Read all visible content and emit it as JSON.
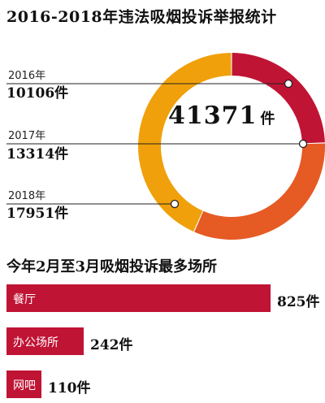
{
  "colors": {
    "y2016": "#c01435",
    "y2017": "#e65a24",
    "y2018": "#f0a00a",
    "bar": "#c01435"
  },
  "chart_data": [
    {
      "type": "pie",
      "title": "2016-2018年违法吸烟投诉举报统计",
      "total_label": "41371",
      "total_unit": "件",
      "slices": [
        {
          "label": "2016年",
          "value": 10106,
          "value_label": "10106件"
        },
        {
          "label": "2017年",
          "value": 13314,
          "value_label": "13314件"
        },
        {
          "label": "2018年",
          "value": 17951,
          "value_label": "17951件"
        }
      ]
    },
    {
      "type": "bar",
      "title": "今年2月至3月吸烟投诉最多场所",
      "categories": [
        "餐厅",
        "办公场所",
        "网吧"
      ],
      "values": [
        825,
        242,
        110
      ],
      "value_labels": [
        "825件",
        "242件",
        "110件"
      ]
    }
  ]
}
